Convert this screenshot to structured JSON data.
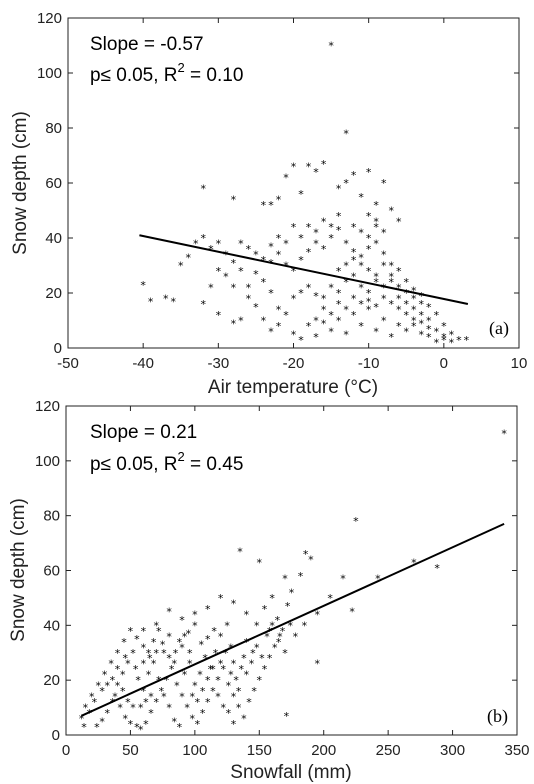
{
  "chart_data": [
    {
      "type": "scatter",
      "panel_label": "(a)",
      "annotation_line1": "Slope = -0.57",
      "annotation_line2_prefix": "p≤ 0.05, R",
      "annotation_line2_sup": "2",
      "annotation_line2_suffix": " = 0.10",
      "xlabel": "Air temperature (°C)",
      "ylabel": "Snow depth (cm)",
      "xlim": [
        -50,
        10
      ],
      "ylim": [
        0,
        120
      ],
      "xticks": [
        "-50",
        "-40",
        "-30",
        "-20",
        "-10",
        "0",
        "10"
      ],
      "yticks": [
        "0",
        "20",
        "40",
        "60",
        "80",
        "100",
        "120"
      ],
      "grid": false,
      "marker": "*",
      "fit_line": {
        "x": [
          -40.5,
          3.2
        ],
        "y": [
          41,
          16
        ],
        "slope": -0.57
      },
      "points": [
        [
          -15,
          110
        ],
        [
          -13,
          78
        ],
        [
          -32,
          58
        ],
        [
          -28,
          54
        ],
        [
          -20,
          66
        ],
        [
          -18,
          66
        ],
        [
          -16,
          67
        ],
        [
          -17,
          64
        ],
        [
          -12,
          63
        ],
        [
          -13,
          60
        ],
        [
          -14,
          58
        ],
        [
          -10,
          64
        ],
        [
          -8,
          60
        ],
        [
          -21,
          62
        ],
        [
          -23,
          52
        ],
        [
          -24,
          52
        ],
        [
          -22,
          54
        ],
        [
          -19,
          56
        ],
        [
          -11,
          55
        ],
        [
          -9,
          52
        ],
        [
          -7,
          50
        ],
        [
          -6,
          46
        ],
        [
          -40,
          23
        ],
        [
          -39,
          17
        ],
        [
          -36,
          17
        ],
        [
          -37,
          18
        ],
        [
          -35,
          30
        ],
        [
          -34,
          33
        ],
        [
          -33,
          38
        ],
        [
          -32,
          40
        ],
        [
          -31,
          36
        ],
        [
          -30,
          38
        ],
        [
          -29,
          34
        ],
        [
          -28,
          31
        ],
        [
          -27,
          38
        ],
        [
          -26,
          36
        ],
        [
          -25,
          34
        ],
        [
          -24,
          32
        ],
        [
          -23,
          31
        ],
        [
          -22,
          34
        ],
        [
          -21,
          30
        ],
        [
          -20,
          28
        ],
        [
          -19,
          32
        ],
        [
          -18,
          35
        ],
        [
          -17,
          38
        ],
        [
          -16,
          36
        ],
        [
          -15,
          40
        ],
        [
          -14,
          43
        ],
        [
          -13,
          38
        ],
        [
          -12,
          35
        ],
        [
          -11,
          33
        ],
        [
          -10,
          36
        ],
        [
          -9,
          38
        ],
        [
          -8,
          34
        ],
        [
          -7,
          30
        ],
        [
          -6,
          28
        ],
        [
          -5,
          24
        ],
        [
          -4,
          21
        ],
        [
          -3,
          19
        ],
        [
          -2,
          15
        ],
        [
          -1,
          12
        ],
        [
          0,
          8
        ],
        [
          1,
          5
        ],
        [
          2,
          3
        ],
        [
          -32,
          16
        ],
        [
          -31,
          22
        ],
        [
          -30,
          28
        ],
        [
          -29,
          26
        ],
        [
          -28,
          22
        ],
        [
          -27,
          10
        ],
        [
          -26,
          18
        ],
        [
          -25,
          27
        ],
        [
          -24,
          24
        ],
        [
          -23,
          20
        ],
        [
          -22,
          14
        ],
        [
          -21,
          12
        ],
        [
          -20,
          18
        ],
        [
          -19,
          20
        ],
        [
          -18,
          22
        ],
        [
          -17,
          19
        ],
        [
          -16,
          18
        ],
        [
          -15,
          22
        ],
        [
          -14,
          20
        ],
        [
          -13,
          24
        ],
        [
          -12,
          26
        ],
        [
          -11,
          22
        ],
        [
          -10,
          20
        ],
        [
          -9,
          24
        ],
        [
          -8,
          22
        ],
        [
          -7,
          26
        ],
        [
          -6,
          18
        ],
        [
          -5,
          16
        ],
        [
          -4,
          14
        ],
        [
          -3,
          12
        ],
        [
          -2,
          10
        ],
        [
          -1,
          6
        ],
        [
          0,
          4
        ],
        [
          1,
          2
        ],
        [
          3,
          3
        ],
        [
          -20,
          5
        ],
        [
          -19,
          3
        ],
        [
          -18,
          8
        ],
        [
          -17,
          4
        ],
        [
          -16,
          9
        ],
        [
          -15,
          6
        ],
        [
          -14,
          10
        ],
        [
          -13,
          5
        ],
        [
          -12,
          12
        ],
        [
          -11,
          8
        ],
        [
          -10,
          14
        ],
        [
          -9,
          6
        ],
        [
          -8,
          10
        ],
        [
          -7,
          4
        ],
        [
          -6,
          8
        ],
        [
          -5,
          6
        ],
        [
          -4,
          10
        ],
        [
          -3,
          5
        ],
        [
          -2,
          4
        ],
        [
          -1,
          2
        ],
        [
          0,
          3
        ],
        [
          -24,
          10
        ],
        [
          -23,
          6
        ],
        [
          -22,
          8
        ],
        [
          -25,
          15
        ],
        [
          -26,
          22
        ],
        [
          -27,
          28
        ],
        [
          -30,
          12
        ],
        [
          -28,
          9
        ],
        [
          -14,
          28
        ],
        [
          -13,
          30
        ],
        [
          -12,
          32
        ],
        [
          -11,
          30
        ],
        [
          -10,
          28
        ],
        [
          -9,
          26
        ],
        [
          -8,
          30
        ],
        [
          -7,
          24
        ],
        [
          -6,
          22
        ],
        [
          -5,
          20
        ],
        [
          -4,
          18
        ],
        [
          -3,
          16
        ],
        [
          -12,
          44
        ],
        [
          -11,
          42
        ],
        [
          -10,
          40
        ],
        [
          -9,
          44
        ],
        [
          -8,
          42
        ],
        [
          -10,
          48
        ],
        [
          -9,
          46
        ],
        [
          -15,
          44
        ],
        [
          -14,
          48
        ],
        [
          -16,
          46
        ],
        [
          -17,
          42
        ],
        [
          -18,
          44
        ],
        [
          -19,
          40
        ],
        [
          -21,
          38
        ],
        [
          -22,
          40
        ],
        [
          -23,
          37
        ],
        [
          -20,
          44
        ],
        [
          -12,
          18
        ],
        [
          -11,
          16
        ],
        [
          -10,
          17
        ],
        [
          -9,
          15
        ],
        [
          -8,
          18
        ],
        [
          -7,
          16
        ],
        [
          -6,
          14
        ],
        [
          -5,
          12
        ],
        [
          -4,
          8
        ],
        [
          -3,
          9
        ],
        [
          -2,
          7
        ],
        [
          -13,
          14
        ],
        [
          -14,
          16
        ],
        [
          -15,
          12
        ],
        [
          -16,
          14
        ],
        [
          -17,
          10
        ]
      ]
    },
    {
      "type": "scatter",
      "panel_label": "(b)",
      "annotation_line1": "Slope = 0.21",
      "annotation_line2_prefix": "p≤ 0.05, R",
      "annotation_line2_sup": "2",
      "annotation_line2_suffix": " = 0.45",
      "xlabel": "Snowfall (mm)",
      "ylabel": "Snow depth (cm)",
      "xlim": [
        0,
        350
      ],
      "ylim": [
        0,
        120
      ],
      "xticks": [
        "0",
        "50",
        "100",
        "150",
        "200",
        "250",
        "300",
        "350"
      ],
      "yticks": [
        "0",
        "20",
        "40",
        "60",
        "80",
        "100",
        "120"
      ],
      "grid": false,
      "marker": "*",
      "fit_line": {
        "x": [
          12,
          340
        ],
        "y": [
          7,
          77
        ],
        "slope": 0.21
      },
      "points": [
        [
          340,
          110
        ],
        [
          225,
          78
        ],
        [
          270,
          63
        ],
        [
          288,
          61
        ],
        [
          242,
          57
        ],
        [
          222,
          45
        ],
        [
          186,
          66
        ],
        [
          190,
          64
        ],
        [
          182,
          58
        ],
        [
          170,
          57
        ],
        [
          135,
          67
        ],
        [
          150,
          63
        ],
        [
          175,
          52
        ],
        [
          172,
          47
        ],
        [
          160,
          50
        ],
        [
          154,
          46
        ],
        [
          148,
          40
        ],
        [
          195,
          26
        ],
        [
          171,
          7
        ],
        [
          215,
          57
        ],
        [
          205,
          50
        ],
        [
          195,
          44
        ],
        [
          185,
          40
        ],
        [
          178,
          36
        ],
        [
          165,
          34
        ],
        [
          158,
          38
        ],
        [
          145,
          30
        ],
        [
          140,
          34
        ],
        [
          138,
          28
        ],
        [
          130,
          26
        ],
        [
          128,
          32
        ],
        [
          125,
          40
        ],
        [
          120,
          36
        ],
        [
          115,
          38
        ],
        [
          110,
          35
        ],
        [
          105,
          33
        ],
        [
          100,
          40
        ],
        [
          95,
          37
        ],
        [
          90,
          32
        ],
        [
          85,
          30
        ],
        [
          80,
          36
        ],
        [
          75,
          33
        ],
        [
          70,
          30
        ],
        [
          65,
          28
        ],
        [
          60,
          32
        ],
        [
          55,
          35
        ],
        [
          50,
          38
        ],
        [
          45,
          34
        ],
        [
          40,
          30
        ],
        [
          35,
          26
        ],
        [
          30,
          22
        ],
        [
          25,
          18
        ],
        [
          20,
          14
        ],
        [
          15,
          10
        ],
        [
          12,
          6
        ],
        [
          14,
          3
        ],
        [
          18,
          8
        ],
        [
          22,
          12
        ],
        [
          28,
          16
        ],
        [
          32,
          18
        ],
        [
          38,
          14
        ],
        [
          42,
          10
        ],
        [
          46,
          6
        ],
        [
          50,
          4
        ],
        [
          55,
          3
        ],
        [
          58,
          2
        ],
        [
          62,
          4
        ],
        [
          66,
          8
        ],
        [
          70,
          12
        ],
        [
          74,
          16
        ],
        [
          78,
          20
        ],
        [
          82,
          24
        ],
        [
          86,
          18
        ],
        [
          90,
          14
        ],
        [
          94,
          10
        ],
        [
          98,
          6
        ],
        [
          102,
          4
        ],
        [
          106,
          8
        ],
        [
          110,
          12
        ],
        [
          114,
          16
        ],
        [
          118,
          20
        ],
        [
          122,
          24
        ],
        [
          126,
          18
        ],
        [
          130,
          14
        ],
        [
          134,
          10
        ],
        [
          138,
          6
        ],
        [
          142,
          12
        ],
        [
          146,
          16
        ],
        [
          150,
          20
        ],
        [
          154,
          24
        ],
        [
          158,
          28
        ],
        [
          162,
          32
        ],
        [
          166,
          36
        ],
        [
          170,
          30
        ],
        [
          174,
          40
        ],
        [
          140,
          44
        ],
        [
          130,
          48
        ],
        [
          120,
          50
        ],
        [
          110,
          46
        ],
        [
          100,
          44
        ],
        [
          90,
          42
        ],
        [
          80,
          45
        ],
        [
          70,
          40
        ],
        [
          60,
          38
        ],
        [
          52,
          30
        ],
        [
          48,
          26
        ],
        [
          44,
          22
        ],
        [
          40,
          18
        ],
        [
          36,
          12
        ],
        [
          32,
          8
        ],
        [
          28,
          5
        ],
        [
          24,
          3
        ],
        [
          56,
          20
        ],
        [
          60,
          16
        ],
        [
          64,
          22
        ],
        [
          68,
          26
        ],
        [
          72,
          20
        ],
        [
          76,
          14
        ],
        [
          80,
          10
        ],
        [
          84,
          5
        ],
        [
          88,
          3
        ],
        [
          92,
          22
        ],
        [
          96,
          26
        ],
        [
          100,
          18
        ],
        [
          104,
          22
        ],
        [
          108,
          28
        ],
        [
          112,
          24
        ],
        [
          116,
          30
        ],
        [
          120,
          26
        ],
        [
          124,
          30
        ],
        [
          128,
          22
        ],
        [
          132,
          20
        ],
        [
          136,
          24
        ],
        [
          140,
          22
        ],
        [
          144,
          26
        ],
        [
          148,
          32
        ],
        [
          152,
          28
        ],
        [
          156,
          36
        ],
        [
          160,
          40
        ],
        [
          164,
          42
        ],
        [
          168,
          38
        ],
        [
          60,
          26
        ],
        [
          64,
          30
        ],
        [
          68,
          34
        ],
        [
          72,
          38
        ],
        [
          76,
          30
        ],
        [
          80,
          28
        ],
        [
          84,
          26
        ],
        [
          88,
          34
        ],
        [
          92,
          36
        ],
        [
          96,
          30
        ],
        [
          58,
          10
        ],
        [
          62,
          12
        ],
        [
          66,
          14
        ],
        [
          44,
          16
        ],
        [
          48,
          12
        ],
        [
          52,
          10
        ],
        [
          36,
          20
        ],
        [
          40,
          24
        ],
        [
          46,
          28
        ],
        [
          54,
          24
        ],
        [
          98,
          14
        ],
        [
          102,
          12
        ],
        [
          106,
          16
        ],
        [
          110,
          20
        ],
        [
          114,
          24
        ],
        [
          118,
          14
        ],
        [
          122,
          10
        ],
        [
          126,
          8
        ],
        [
          130,
          4
        ],
        [
          134,
          16
        ]
      ]
    }
  ]
}
